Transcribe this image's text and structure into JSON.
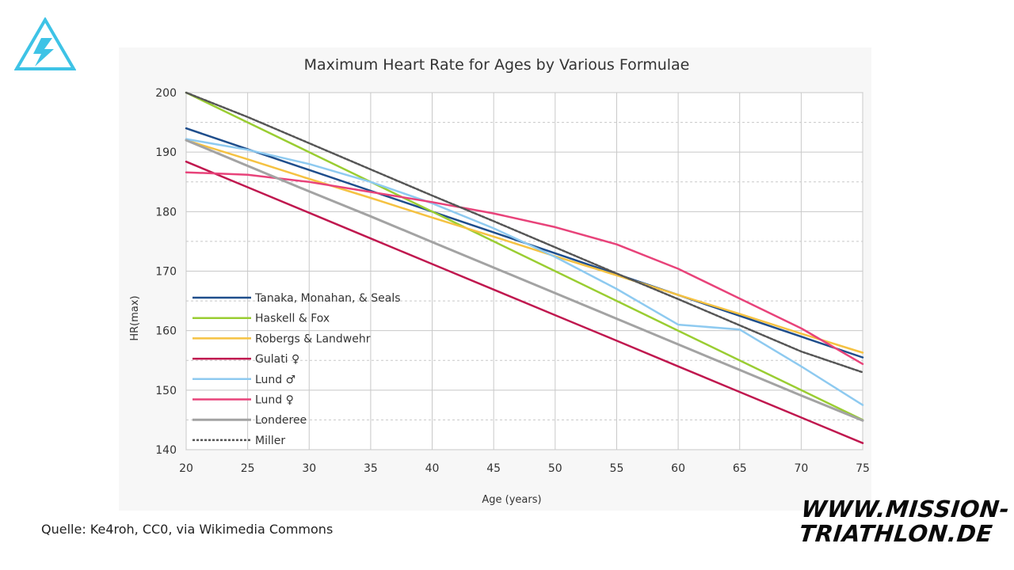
{
  "logo": {
    "icon": "triangle-lightning-logo",
    "color": "#3ec3e6"
  },
  "source": "Quelle: Ke4roh, CC0, via Wikimedia Commons",
  "brand": {
    "line1": "WWW.MISSION-",
    "line2": "TRIATHLON.DE"
  },
  "chart_data": {
    "type": "line",
    "title": "Maximum Heart Rate for Ages by Various Formulae",
    "xlabel": "Age (years)",
    "ylabel": "HR(max)",
    "xlim": [
      20,
      75
    ],
    "ylim": [
      140,
      200
    ],
    "x_ticks": [
      20,
      25,
      30,
      35,
      40,
      45,
      50,
      55,
      60,
      65,
      70,
      75
    ],
    "y_ticks": [
      140,
      150,
      160,
      170,
      180,
      190,
      200
    ],
    "grid": true,
    "legend_position": "lower-left",
    "x": [
      20,
      25,
      30,
      35,
      40,
      45,
      50,
      55,
      60,
      65,
      70,
      75
    ],
    "series": [
      {
        "name": "Tanaka, Monahan, & Seals",
        "color": "#1f4e8c",
        "dash": "",
        "width": 2.5,
        "values": [
          194,
          190.5,
          187,
          183.5,
          180,
          176.5,
          173,
          169.5,
          166,
          162.5,
          159,
          155.5
        ]
      },
      {
        "name": "Haskell & Fox",
        "color": "#9acd32",
        "dash": "",
        "width": 2.5,
        "values": [
          200,
          195,
          190,
          185,
          180,
          175,
          170,
          165,
          160,
          155,
          150,
          145
        ]
      },
      {
        "name": "Robergs & Landwehr",
        "color": "#f5c242",
        "dash": "",
        "width": 2.5,
        "values": [
          192.0,
          188.8,
          185.5,
          182.3,
          179.0,
          175.8,
          172.5,
          169.3,
          166.0,
          162.8,
          159.5,
          156.3
        ]
      },
      {
        "name": "Gulati ♀",
        "color": "#c0184f",
        "dash": "",
        "width": 2.5,
        "values": [
          188.4,
          184.1,
          179.8,
          175.5,
          171.2,
          166.9,
          162.6,
          158.3,
          154.0,
          149.7,
          145.4,
          141.1
        ]
      },
      {
        "name": "Lund ♂",
        "color": "#8ecaf0",
        "dash": "",
        "width": 2.5,
        "values": [
          192.2,
          190.4,
          188.0,
          185.0,
          181.4,
          177.2,
          172.4,
          167.0,
          161.0,
          160.2,
          154.0,
          147.5
        ]
      },
      {
        "name": "Lund ♀",
        "color": "#e8437a",
        "dash": "",
        "width": 2.5,
        "values": [
          186.6,
          186.2,
          185.0,
          183.3,
          181.6,
          179.7,
          177.4,
          174.5,
          170.4,
          165.4,
          160.4,
          154.4
        ]
      },
      {
        "name": "Londeree",
        "color": "#a3a3a3",
        "dash": "",
        "width": 3,
        "values": [
          192,
          187.7,
          183.4,
          179.2,
          174.9,
          170.6,
          166.3,
          162.0,
          157.7,
          153.4,
          149.1,
          144.9
        ]
      },
      {
        "name": "Miller",
        "color": "#555555",
        "dash": "3,2",
        "width": 2.5,
        "values": [
          200,
          195.9,
          191.5,
          187.1,
          182.7,
          178.4,
          174.0,
          169.6,
          165.3,
          160.9,
          156.5,
          153.0
        ]
      }
    ]
  }
}
